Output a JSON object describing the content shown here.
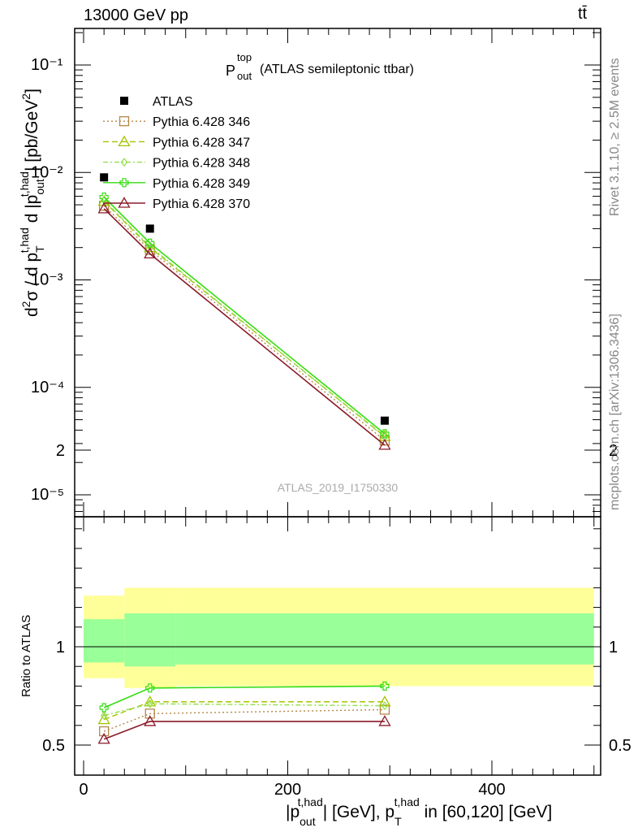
{
  "header": {
    "process": "13000 GeV pp",
    "channel": "tt̄"
  },
  "side_labels": {
    "rivet": "Rivet 3.1.10, ≥ 2.5M events",
    "mcplots": "mcplots.cern.ch [arXiv:1306.3436]"
  },
  "watermark": "ATLAS_2019_I1750330",
  "colors": {
    "data": "#000000",
    "p346": "#b5884a",
    "p347": "#a4c400",
    "p348": "#92e04a",
    "p349": "#33dd11",
    "p370": "#8b1a2a",
    "band_yellow": "#ffff99",
    "band_green": "#99ff99"
  },
  "chart_data": [
    {
      "type": "scatter",
      "panel": "main",
      "title": "P_out^top (ATLAS semileptonic ttbar)",
      "ylabel": "d²σ / d p_T^{t,had} d |p_out^{t,had}| [pb/GeV²]",
      "yscale": "log",
      "ylim": [
        6.5e-06,
        0.21
      ],
      "xlim": [
        -20,
        510
      ],
      "y_ticks": [
        "10⁻¹",
        "10⁻²",
        "10⁻³",
        "10⁻⁴",
        "10⁻⁵"
      ],
      "legend_position": "top-left",
      "x": [
        20,
        65,
        295
      ],
      "series": [
        {
          "name": "ATLAS",
          "marker": "filled-square",
          "values": [
            0.009,
            0.003,
            4.9e-05
          ]
        },
        {
          "name": "Pythia 6.428 346",
          "marker": "open-square",
          "line": "dotted",
          "values": [
            0.0049,
            0.0019,
            3.2e-05
          ]
        },
        {
          "name": "Pythia 6.428 347",
          "marker": "open-triangle",
          "line": "dashed",
          "values": [
            0.0054,
            0.002,
            3.5e-05
          ]
        },
        {
          "name": "Pythia 6.428 348",
          "marker": "open-diamond",
          "line": "dashdot",
          "values": [
            0.0055,
            0.00205,
            3.45e-05
          ]
        },
        {
          "name": "Pythia 6.428 349",
          "marker": "open-cross",
          "line": "solid",
          "values": [
            0.0059,
            0.0022,
            3.7e-05
          ]
        },
        {
          "name": "Pythia 6.428 370",
          "marker": "open-triangle",
          "line": "solid",
          "values": [
            0.0046,
            0.00175,
            2.9e-05
          ]
        }
      ]
    },
    {
      "type": "line",
      "panel": "ratio",
      "ylabel": "Ratio to ATLAS",
      "xlabel": "|p_out^{t,had}| [GeV], p_T^{t,had} in [60,120] [GeV]",
      "ylim": [
        0.35,
        2.35
      ],
      "xlim": [
        -20,
        510
      ],
      "y_ticks": [
        "0.5",
        "1",
        "2"
      ],
      "x_ticks": [
        "0",
        "200",
        "400"
      ],
      "x": [
        20,
        65,
        295
      ],
      "bands": [
        {
          "x_from": 0,
          "x_to": 40,
          "yellow": [
            0.84,
            1.26
          ],
          "green": [
            0.92,
            1.14
          ]
        },
        {
          "x_from": 40,
          "x_to": 90,
          "yellow": [
            0.79,
            1.3
          ],
          "green": [
            0.9,
            1.17
          ]
        },
        {
          "x_from": 90,
          "x_to": 500,
          "yellow": [
            0.8,
            1.3
          ],
          "green": [
            0.91,
            1.17
          ]
        }
      ],
      "series": [
        {
          "name": "Pythia 6.428 346",
          "values": [
            0.57,
            0.66,
            0.68
          ]
        },
        {
          "name": "Pythia 6.428 347",
          "values": [
            0.63,
            0.72,
            0.72
          ]
        },
        {
          "name": "Pythia 6.428 348",
          "values": [
            0.65,
            0.71,
            0.7
          ]
        },
        {
          "name": "Pythia 6.428 349",
          "values": [
            0.69,
            0.79,
            0.8
          ]
        },
        {
          "name": "Pythia 6.428 370",
          "values": [
            0.53,
            0.62,
            0.62
          ]
        }
      ]
    }
  ]
}
